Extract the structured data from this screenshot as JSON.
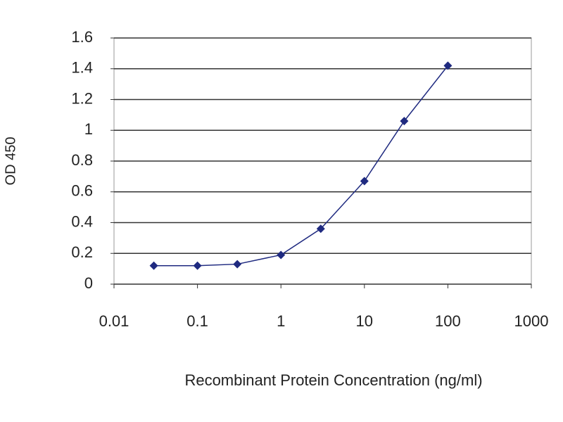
{
  "chart_data": {
    "type": "line",
    "x_label": "Recombinant Protein Concentration (ng/ml)",
    "y_label": "OD 450",
    "x": [
      0.03,
      0.1,
      0.3,
      1,
      3,
      10,
      30,
      100
    ],
    "series": [
      {
        "color": "#1f2a80",
        "values": [
          0.12,
          0.12,
          0.13,
          0.19,
          0.36,
          0.67,
          1.06,
          1.42
        ]
      }
    ],
    "xscale": "log",
    "xlim": [
      0.01,
      1000
    ],
    "xticks": [
      0.01,
      0.1,
      1,
      10,
      100,
      1000
    ],
    "ylim": [
      0,
      1.6
    ],
    "yticks": [
      0,
      0.2,
      0.4,
      0.6,
      0.8,
      1,
      1.2,
      1.4,
      1.6
    ],
    "grid": true,
    "marker": "diamond"
  }
}
